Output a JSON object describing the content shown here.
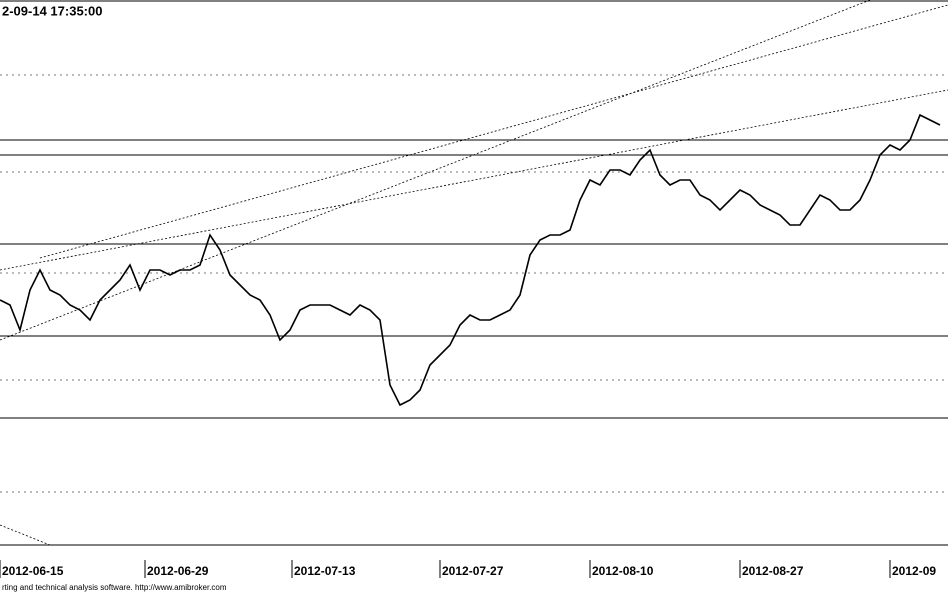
{
  "chart_data": {
    "type": "line",
    "title": "2-09-14 17:35:00",
    "footer": "rting and technical analysis software. http://www.amibroker.com",
    "xlim": [
      0,
      94.8
    ],
    "ylim": [
      0,
      109
    ],
    "xticks": [
      {
        "value": 0,
        "label": "2012-06-15"
      },
      {
        "value": 14.5,
        "label": "2012-06-29"
      },
      {
        "value": 29.2,
        "label": "2012-07-13"
      },
      {
        "value": 44,
        "label": "2012-07-27"
      },
      {
        "value": 59,
        "label": "2012-08-10"
      },
      {
        "value": 74,
        "label": "2012-08-27"
      },
      {
        "value": 89,
        "label": "2012-09"
      }
    ],
    "ygrid": [
      94,
      74.6,
      54.4,
      33,
      10.6
    ],
    "hlines": [
      81,
      78,
      60.2,
      41.8,
      25.4
    ],
    "trendlines": [
      {
        "x": [
          0,
          87
        ],
        "y": [
          41,
          109
        ]
      },
      {
        "x": [
          4,
          94.8
        ],
        "y": [
          57.4,
          108
        ]
      },
      {
        "x": [
          0,
          94.8
        ],
        "y": [
          55,
          91
        ]
      },
      {
        "x": [
          0,
          10
        ],
        "y": [
          4,
          -4
        ]
      }
    ],
    "series": [
      {
        "color": "#000000",
        "values": [
          49,
          48,
          43,
          51,
          55,
          51,
          50,
          48,
          47,
          45,
          49,
          51,
          53,
          56,
          51,
          55,
          55,
          54,
          55,
          55,
          56,
          62,
          59,
          54,
          52,
          50,
          49,
          46,
          41,
          43,
          47,
          48,
          48,
          48,
          47,
          46,
          48,
          47,
          45,
          32,
          28,
          29,
          31,
          36,
          38,
          40,
          44,
          46,
          45,
          45,
          46,
          47,
          50,
          58,
          61,
          62,
          62,
          63,
          69,
          73,
          72,
          75,
          75,
          74,
          77,
          79,
          74,
          72,
          73,
          73,
          70,
          69,
          67,
          69,
          71,
          70,
          68,
          67,
          66,
          64,
          64,
          67,
          70,
          69,
          67,
          67,
          69,
          73,
          78,
          80,
          79,
          81,
          86,
          85,
          84
        ]
      }
    ]
  }
}
